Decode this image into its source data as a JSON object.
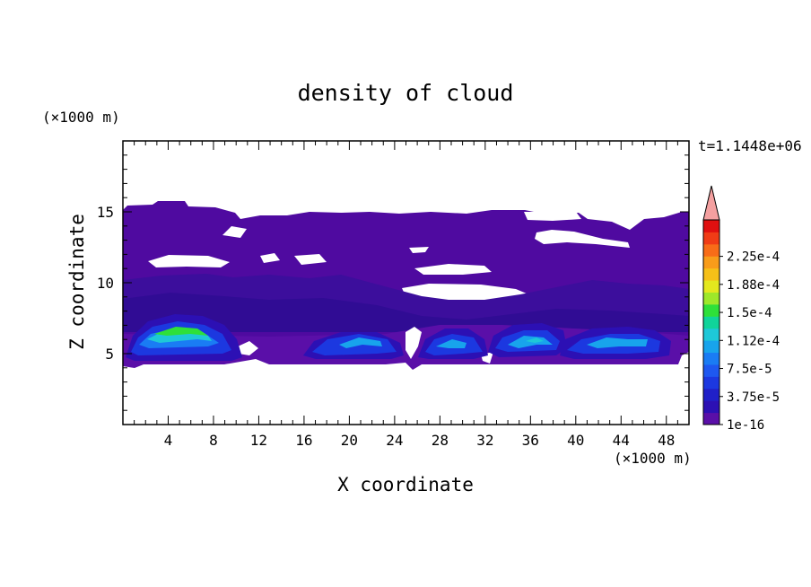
{
  "chart_data": {
    "type": "heatmap",
    "title": "density of cloud",
    "xlabel": "X coordinate",
    "ylabel": "Z coordinate",
    "x_unit": "(×1000 m)",
    "y_unit": "(×1000 m)",
    "time_label": "t=1.1448e+06",
    "xlim": [
      0,
      50
    ],
    "ylim": [
      0,
      20
    ],
    "x_ticks": [
      "4",
      "8",
      "12",
      "16",
      "20",
      "24",
      "28",
      "32",
      "36",
      "40",
      "44",
      "48"
    ],
    "y_ticks": [
      "5",
      "10",
      "15"
    ],
    "colorbar": {
      "tick_labels": [
        "1e-16",
        "3.75e-5",
        "7.5e-5",
        "1.12e-4",
        "1.5e-4",
        "1.88e-4",
        "2.25e-4"
      ],
      "colors": [
        "#5a0fa8",
        "#2c10b4",
        "#2020c8",
        "#1c38e0",
        "#1e58f0",
        "#1a7cf4",
        "#18a4ec",
        "#1ec8d8",
        "#10d49a",
        "#2ee03a",
        "#9ee82a",
        "#e4e81e",
        "#f6c018",
        "#f89c1a",
        "#f86c18",
        "#f03c16",
        "#e01010"
      ],
      "overflow_color": "#f4a0a0"
    },
    "regions": [
      {
        "desc": "upper cloud layer",
        "x": [
          0,
          50
        ],
        "z": [
          9.5,
          15.5
        ],
        "level": 0
      },
      {
        "desc": "lower cloud layer",
        "x": [
          0,
          50
        ],
        "z": [
          4.3,
          9.5
        ],
        "level": 0
      },
      {
        "desc": "cell 1",
        "x_center": 6,
        "z_center": 6.5,
        "peak_density": 0.00015
      },
      {
        "desc": "cell 2",
        "x_center": 21,
        "z_center": 5.8,
        "peak_density": 7.5e-05
      },
      {
        "desc": "cell 3",
        "x_center": 29,
        "z_center": 5.8,
        "peak_density": 7.5e-05
      },
      {
        "desc": "cell 4",
        "x_center": 36,
        "z_center": 6.0,
        "peak_density": 9e-05
      },
      {
        "desc": "cell 5",
        "x_center": 44,
        "z_center": 5.8,
        "peak_density": 7.5e-05
      }
    ]
  }
}
